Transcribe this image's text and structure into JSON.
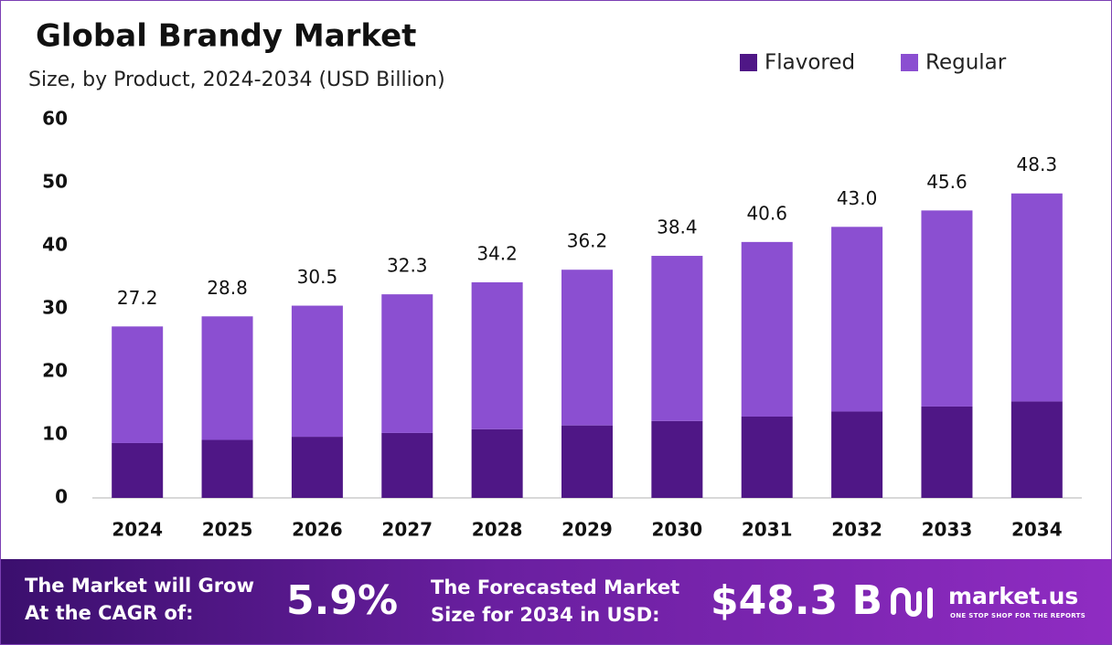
{
  "chart_data": {
    "type": "stacked-bar",
    "title": "Global Brandy Market",
    "subtitle": "Size, by Product, 2024-2034 (USD Billion)",
    "categories": [
      "2024",
      "2025",
      "2026",
      "2027",
      "2028",
      "2029",
      "2030",
      "2031",
      "2032",
      "2033",
      "2034"
    ],
    "series": [
      {
        "name": "Flavored",
        "color": "#4f1786",
        "values": [
          8.7,
          9.2,
          9.7,
          10.3,
          10.9,
          11.5,
          12.2,
          12.9,
          13.7,
          14.5,
          15.3
        ]
      },
      {
        "name": "Regular",
        "color": "#8b4fd1",
        "values": [
          18.5,
          19.6,
          20.8,
          22.0,
          23.3,
          24.7,
          26.2,
          27.7,
          29.3,
          31.1,
          33.0
        ]
      }
    ],
    "totals": [
      27.2,
      28.8,
      30.5,
      32.3,
      34.2,
      36.2,
      38.4,
      40.6,
      43.0,
      45.6,
      48.3
    ],
    "total_labels": [
      "27.2",
      "28.8",
      "30.5",
      "32.3",
      "34.2",
      "36.2",
      "38.4",
      "40.6",
      "43.0",
      "45.6",
      "48.3"
    ],
    "ylim": [
      0,
      60
    ],
    "yticks": [
      0,
      10,
      20,
      30,
      40,
      50,
      60
    ],
    "grid": false,
    "legend": "top-right"
  },
  "footer": {
    "cagr_text": [
      "The Market will Grow",
      "At the CAGR of:"
    ],
    "cagr_value": "5.9%",
    "forecast_text": [
      "The Forecasted Market",
      "Size for 2034 in USD:"
    ],
    "forecast_value": "$48.3 B",
    "brand": "market.us",
    "tagline": "ONE STOP SHOP FOR THE REPORTS"
  }
}
